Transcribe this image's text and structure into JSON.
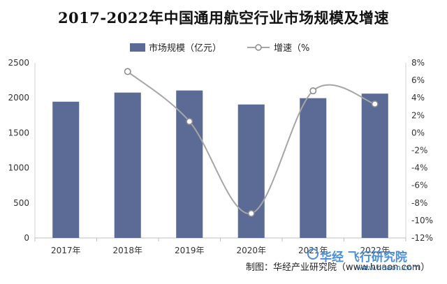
{
  "chart_data": {
    "type": "bar",
    "title": "2017-2022年中国通用航空行业市场规模及增速",
    "categories": [
      "2017年",
      "2018年",
      "2019年",
      "2020年",
      "2021年",
      "2022年"
    ],
    "series": [
      {
        "name": "市场规模（亿元）",
        "type": "bar",
        "axis": "left",
        "color": "#5b6b95",
        "values": [
          1945,
          2075,
          2105,
          1905,
          1995,
          2060
        ]
      },
      {
        "name": "增速（%",
        "type": "line",
        "axis": "right",
        "color": "#a6a6a6",
        "values": [
          null,
          7.0,
          1.3,
          -9.2,
          4.8,
          3.3
        ]
      }
    ],
    "y_left": {
      "min": 0,
      "max": 2500,
      "step": 500,
      "ticks": [
        "0",
        "500",
        "1000",
        "1500",
        "2000",
        "2500"
      ]
    },
    "y_right": {
      "min": -12,
      "max": 8,
      "step": 2,
      "ticks": [
        "-12%",
        "-10%",
        "-8%",
        "-6%",
        "-4%",
        "-2%",
        "0%",
        "2%",
        "4%",
        "6%",
        "8%"
      ]
    },
    "legend_position": "top",
    "grid": false
  },
  "footer": {
    "source": "制图：华经产业研究院（www.huaon.com）"
  },
  "watermark": {
    "text": "华经 飞行研究院 ",
    "url": "www.huaon.com"
  }
}
